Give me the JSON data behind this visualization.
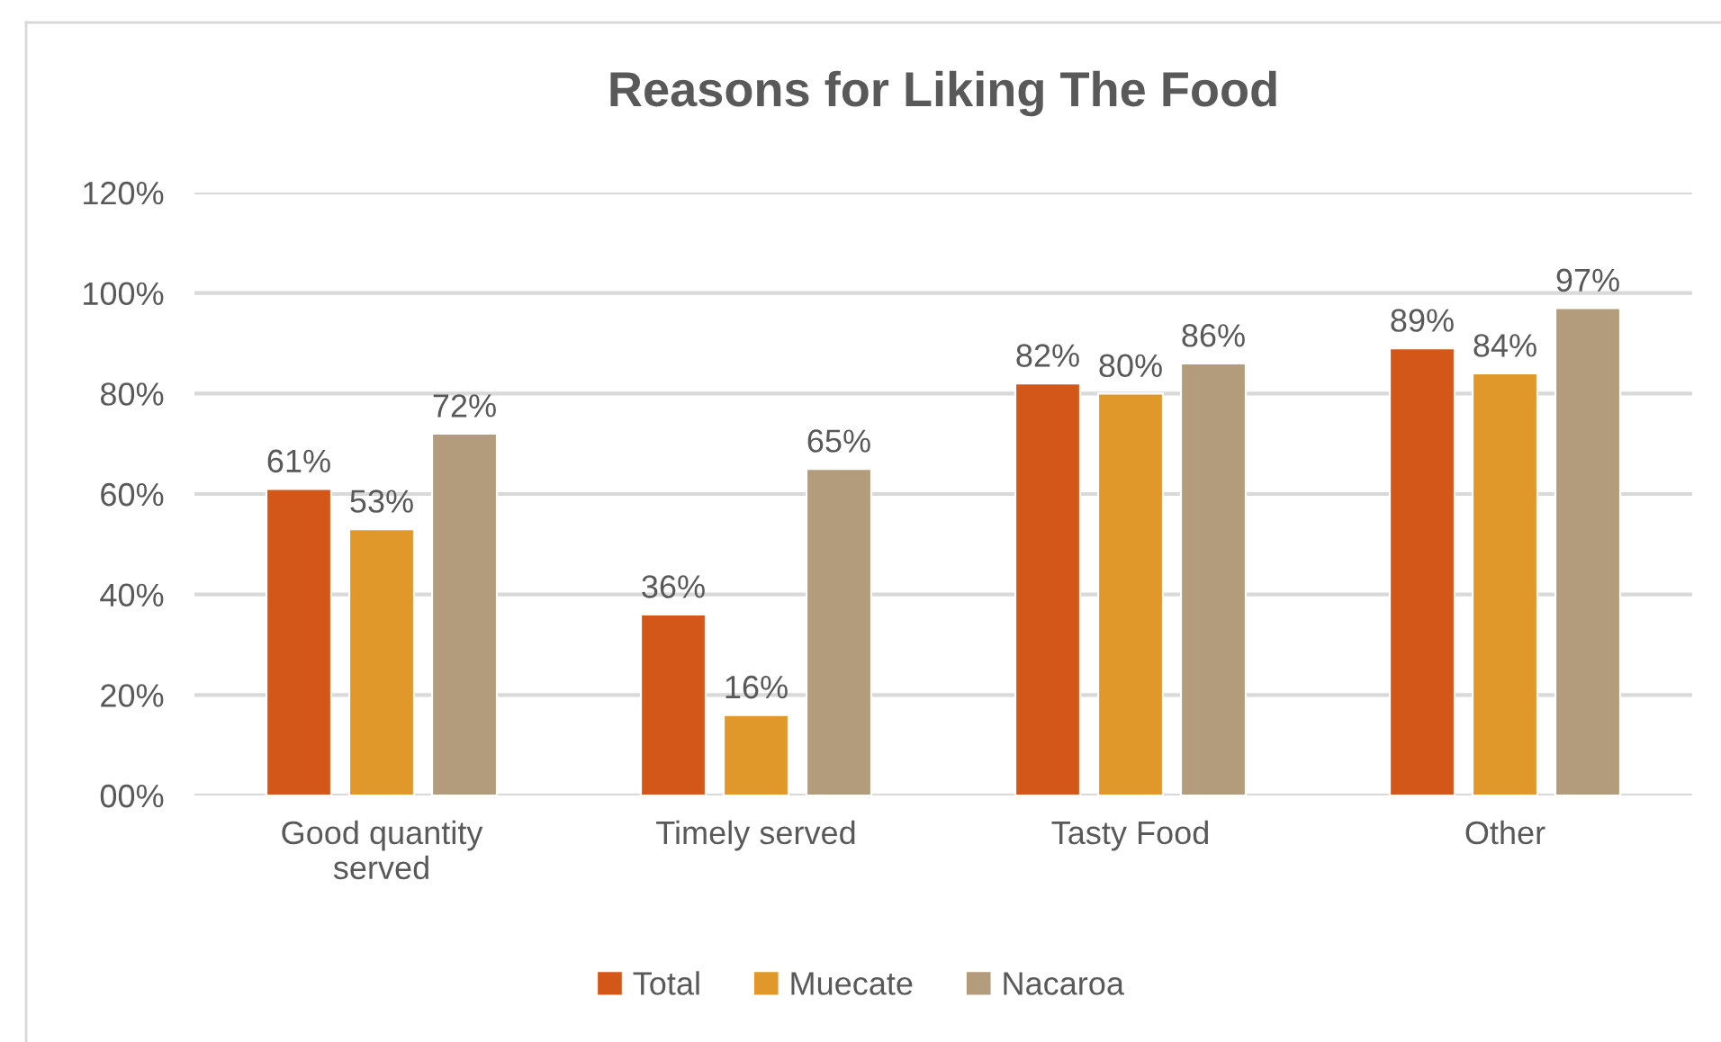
{
  "chart_data": {
    "type": "bar",
    "title": "Reasons for Liking The Food",
    "categories": [
      "Good quantity\nserved",
      "Timely served",
      "Tasty Food",
      "Other"
    ],
    "series": [
      {
        "name": "Total",
        "color": "#d4571a",
        "values": [
          61,
          36,
          82,
          89
        ],
        "value_labels": [
          "61%",
          "36%",
          "82%",
          "89%"
        ]
      },
      {
        "name": "Muecate",
        "color": "#e0982a",
        "values": [
          53,
          16,
          80,
          84
        ],
        "value_labels": [
          "53%",
          "16%",
          "80%",
          "84%"
        ]
      },
      {
        "name": "Nacaroa",
        "color": "#b29c7c",
        "values": [
          72,
          65,
          86,
          97
        ],
        "value_labels": [
          "72%",
          "65%",
          "86%",
          "97%"
        ]
      }
    ],
    "ylim": [
      0,
      120
    ],
    "yticks": [
      {
        "value": 0,
        "label": "00%"
      },
      {
        "value": 20,
        "label": "20%"
      },
      {
        "value": 40,
        "label": "40%"
      },
      {
        "value": 60,
        "label": "60%"
      },
      {
        "value": 80,
        "label": "80%"
      },
      {
        "value": 100,
        "label": "100%"
      },
      {
        "value": 120,
        "label": "120%"
      }
    ],
    "grid": "y",
    "legend": "bottom"
  }
}
